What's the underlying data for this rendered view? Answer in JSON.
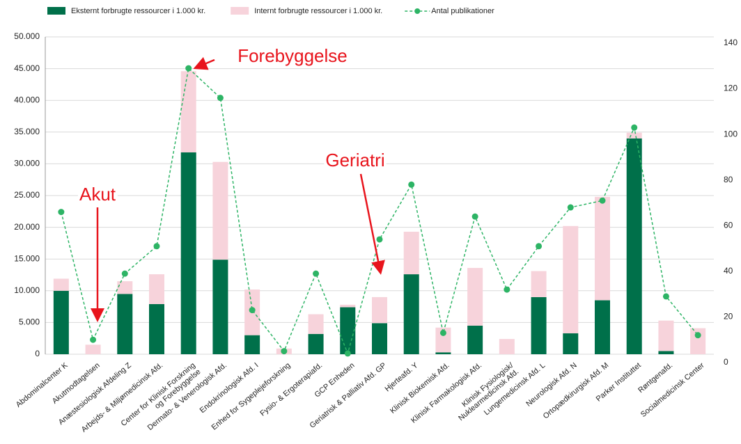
{
  "chart_data": {
    "type": "stacked-bar-line",
    "categories": [
      "Abdominalcenter K",
      "Akutmodtagelsen",
      "Anæstesiologisk Afdeling Z",
      "Arbejds- & Miljømedicinsk Afd.",
      "Center for Klinisk Forskning\nog Forebyggelse",
      "Dermato- & Venerologisk Afd.",
      "Endokrinologisk Afd. I",
      "Enhed for Sygeplejeforskning",
      "Fysio- & Ergoterapiafd.",
      "GCP Enheden",
      "Geriatrisk & Palliativ Afd. GP",
      "Hjerteafd. Y",
      "Klinisk Biokemisk Afd.",
      "Klinisk Farmakologisk Afd.",
      "Klinisk Fysiologisk/\nNuklearmedicinsk Afd.",
      "Lungemedicinsk Afd. L",
      "Neurologisk Afd. N",
      "Ortopædkirurgisk Afd. M",
      "Parker Instituttet",
      "Røntgenafd.",
      "Socialmedicinsk Center"
    ],
    "series": [
      {
        "name": "Eksternt forbrugte ressourcer i 1.000 kr.",
        "color": "#00704a",
        "kind": "bar",
        "values": [
          10000,
          0,
          9500,
          7900,
          31800,
          14900,
          3000,
          0,
          3200,
          7400,
          4900,
          12600,
          300,
          4500,
          0,
          9000,
          3300,
          8500,
          34000,
          500,
          0
        ]
      },
      {
        "name": "Internt forbrugte ressourcer i 1.000 kr.",
        "color": "#f7d3db",
        "kind": "bar",
        "values": [
          1900,
          1500,
          2000,
          4700,
          12800,
          15400,
          7200,
          900,
          3100,
          400,
          4100,
          6700,
          3900,
          9100,
          2400,
          4100,
          16900,
          16300,
          900,
          4800,
          4100
        ]
      },
      {
        "name": "Antal publikationer",
        "color": "#2db465",
        "kind": "line",
        "axis": "y2",
        "values": [
          66,
          10,
          39,
          51,
          129,
          116,
          23,
          5,
          39,
          4,
          54,
          78,
          13,
          64,
          32,
          51,
          68,
          71,
          103,
          29,
          12
        ]
      }
    ],
    "ylim": [
      0,
      50000
    ],
    "yticks": [
      0,
      {
        "value": 5000,
        "label": "5.000"
      },
      {
        "value": 10000,
        "label": "10.000"
      },
      {
        "value": 15000,
        "label": "15.000"
      },
      {
        "value": 20000,
        "label": "20.000"
      },
      {
        "value": 25000,
        "label": "25.000"
      },
      {
        "value": 30000,
        "label": "30.000"
      },
      {
        "value": 35000,
        "label": "35.000"
      },
      {
        "value": 40000,
        "label": "40.000"
      },
      {
        "value": 45000,
        "label": "45.000"
      },
      {
        "value": 50000,
        "label": "50.000"
      }
    ],
    "y2lim": [
      0,
      140
    ],
    "y2ticks": [
      0,
      20,
      40,
      60,
      80,
      100,
      120,
      140
    ],
    "grid": true,
    "annotations": [
      "Akut",
      "Forebyggelse",
      "Geriatri"
    ]
  }
}
